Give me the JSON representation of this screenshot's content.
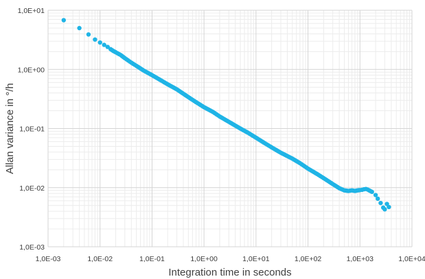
{
  "chart_data": {
    "type": "scatter",
    "title": "",
    "xlabel": "Integration time in seconds",
    "ylabel": "Allan variance in °/h",
    "x_scale": "log",
    "y_scale": "log",
    "xlim": [
      0.001,
      10000
    ],
    "ylim": [
      0.001,
      10
    ],
    "x_ticks": [
      0.001,
      0.01,
      0.1,
      1,
      10,
      100,
      1000,
      10000
    ],
    "x_tick_labels": [
      "1,0E-03",
      "1,0E-02",
      "1,0E-01",
      "1,0E+00",
      "1,0E+01",
      "1,0E+02",
      "1,0E+03",
      "1,0E+04"
    ],
    "y_ticks": [
      0.001,
      0.01,
      0.1,
      1,
      10
    ],
    "y_tick_labels": [
      "1,0E-03",
      "1,0E-02",
      "1,0E-01",
      "1,0E+00",
      "1,0E+01"
    ],
    "grid": true,
    "minor_grid": true,
    "legend": "none",
    "marker_color": "#1fb4e6",
    "series": [
      {
        "x": [
          0.002,
          0.004,
          0.006,
          0.008,
          0.01,
          0.012,
          0.014,
          0.016,
          0.018,
          0.02,
          0.025,
          0.03,
          0.04,
          0.05,
          0.07,
          0.1,
          0.15,
          0.2,
          0.3,
          0.5,
          0.7,
          1,
          1.5,
          2,
          3,
          5,
          7,
          10,
          15,
          20,
          30,
          50,
          70,
          100,
          150,
          200,
          300,
          400,
          500,
          600,
          700,
          800,
          900,
          1000,
          1100,
          1200,
          1300,
          1400,
          1500,
          1700,
          2000,
          2200,
          2500,
          2800,
          3000,
          3300,
          3600
        ],
        "y": [
          6.8,
          5.0,
          3.9,
          3.2,
          2.85,
          2.6,
          2.4,
          2.2,
          2.05,
          1.95,
          1.75,
          1.55,
          1.3,
          1.15,
          0.95,
          0.8,
          0.65,
          0.56,
          0.46,
          0.34,
          0.28,
          0.23,
          0.19,
          0.16,
          0.13,
          0.1,
          0.085,
          0.07,
          0.056,
          0.048,
          0.039,
          0.031,
          0.026,
          0.021,
          0.017,
          0.0145,
          0.0115,
          0.0098,
          0.009,
          0.0088,
          0.009,
          0.0088,
          0.009,
          0.0091,
          0.0092,
          0.0094,
          0.0095,
          0.0093,
          0.009,
          0.0085,
          0.0075,
          0.0065,
          0.0055,
          0.0046,
          0.0043,
          0.0053,
          0.0047
        ]
      }
    ]
  }
}
